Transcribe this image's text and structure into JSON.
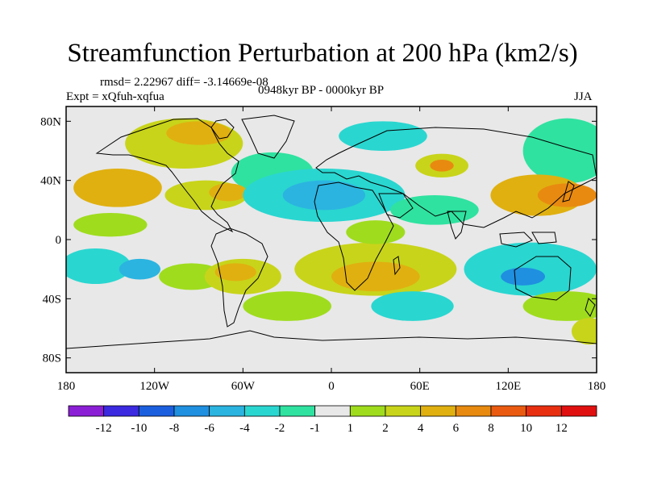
{
  "chart_data": {
    "type": "heatmap",
    "title": "Streamfunction Perturbation at 200 hPa (km2/s)",
    "stats_text": "rmsd= 2.22967 diff= -3.14669e-08",
    "experiment_text": "Expt = xQfuh-xqfua",
    "period_text": "0948kyr BP - 0000kyr BP",
    "season_text": "JJA",
    "x_ticks": [
      "180",
      "120W",
      "60W",
      "0",
      "60E",
      "120E",
      "180"
    ],
    "x_tick_values": [
      -180,
      -120,
      -60,
      0,
      60,
      120,
      180
    ],
    "y_ticks": [
      "80N",
      "40N",
      "0",
      "40S",
      "80S"
    ],
    "y_tick_values": [
      80,
      40,
      0,
      -40,
      -80
    ],
    "xlim": [
      -180,
      180
    ],
    "ylim": [
      -90,
      90
    ],
    "colorbar": {
      "labels": [
        "-12",
        "-10",
        "-8",
        "-6",
        "-4",
        "-2",
        "-1",
        "1",
        "2",
        "4",
        "6",
        "8",
        "10",
        "12"
      ],
      "colors": [
        "#8b1fd6",
        "#3b2ae0",
        "#1b5fdf",
        "#1f8fe0",
        "#2bb4e0",
        "#2ad6d0",
        "#2fe2a0",
        "#e8e8e8",
        "#9fdc1e",
        "#c8d41a",
        "#e0b010",
        "#e88a10",
        "#ea5a10",
        "#e83010",
        "#e01010"
      ]
    },
    "field_blobs": [
      {
        "lon": -145,
        "lat": 35,
        "rx": 30,
        "ry": 13,
        "value": 4
      },
      {
        "lon": -150,
        "lat": 10,
        "rx": 25,
        "ry": 8,
        "value": 1.5
      },
      {
        "lon": -160,
        "lat": -18,
        "rx": 24,
        "ry": 12,
        "value": -3
      },
      {
        "lon": -130,
        "lat": -20,
        "rx": 14,
        "ry": 7,
        "value": -6
      },
      {
        "lon": -95,
        "lat": -25,
        "rx": 22,
        "ry": 9,
        "value": 1.5
      },
      {
        "lon": -100,
        "lat": 65,
        "rx": 40,
        "ry": 17,
        "value": 2.5
      },
      {
        "lon": -90,
        "lat": 72,
        "rx": 22,
        "ry": 8,
        "value": 4
      },
      {
        "lon": -40,
        "lat": 45,
        "rx": 28,
        "ry": 14,
        "value": -2
      },
      {
        "lon": -85,
        "lat": 30,
        "rx": 28,
        "ry": 10,
        "value": 2.5
      },
      {
        "lon": -70,
        "lat": 32,
        "rx": 13,
        "ry": 6,
        "value": 4
      },
      {
        "lon": -60,
        "lat": -25,
        "rx": 26,
        "ry": 12,
        "value": 2.5
      },
      {
        "lon": -65,
        "lat": -22,
        "rx": 14,
        "ry": 6,
        "value": 4
      },
      {
        "lon": -30,
        "lat": -45,
        "rx": 30,
        "ry": 10,
        "value": 1.5
      },
      {
        "lon": -5,
        "lat": 30,
        "rx": 55,
        "ry": 18,
        "value": -3
      },
      {
        "lon": -5,
        "lat": 30,
        "rx": 28,
        "ry": 10,
        "value": -5
      },
      {
        "lon": 35,
        "lat": 70,
        "rx": 30,
        "ry": 10,
        "value": -3
      },
      {
        "lon": 75,
        "lat": 50,
        "rx": 18,
        "ry": 8,
        "value": 3
      },
      {
        "lon": 75,
        "lat": 50,
        "rx": 8,
        "ry": 4,
        "value": 7
      },
      {
        "lon": 70,
        "lat": 20,
        "rx": 30,
        "ry": 10,
        "value": -2
      },
      {
        "lon": 30,
        "lat": -20,
        "rx": 55,
        "ry": 18,
        "value": 3
      },
      {
        "lon": 30,
        "lat": -25,
        "rx": 30,
        "ry": 10,
        "value": 5
      },
      {
        "lon": 55,
        "lat": -45,
        "rx": 28,
        "ry": 10,
        "value": -3
      },
      {
        "lon": 160,
        "lat": 60,
        "rx": 30,
        "ry": 22,
        "value": -2
      },
      {
        "lon": 140,
        "lat": 30,
        "rx": 32,
        "ry": 14,
        "value": 4
      },
      {
        "lon": 160,
        "lat": 30,
        "rx": 20,
        "ry": 8,
        "value": 6
      },
      {
        "lon": 135,
        "lat": -20,
        "rx": 45,
        "ry": 18,
        "value": -4
      },
      {
        "lon": 130,
        "lat": -25,
        "rx": 15,
        "ry": 6,
        "value": -8
      },
      {
        "lon": 160,
        "lat": -45,
        "rx": 30,
        "ry": 10,
        "value": 1.5
      },
      {
        "lon": 175,
        "lat": -62,
        "rx": 12,
        "ry": 9,
        "value": 3
      },
      {
        "lon": 30,
        "lat": 5,
        "rx": 20,
        "ry": 8,
        "value": 1.5
      }
    ]
  }
}
